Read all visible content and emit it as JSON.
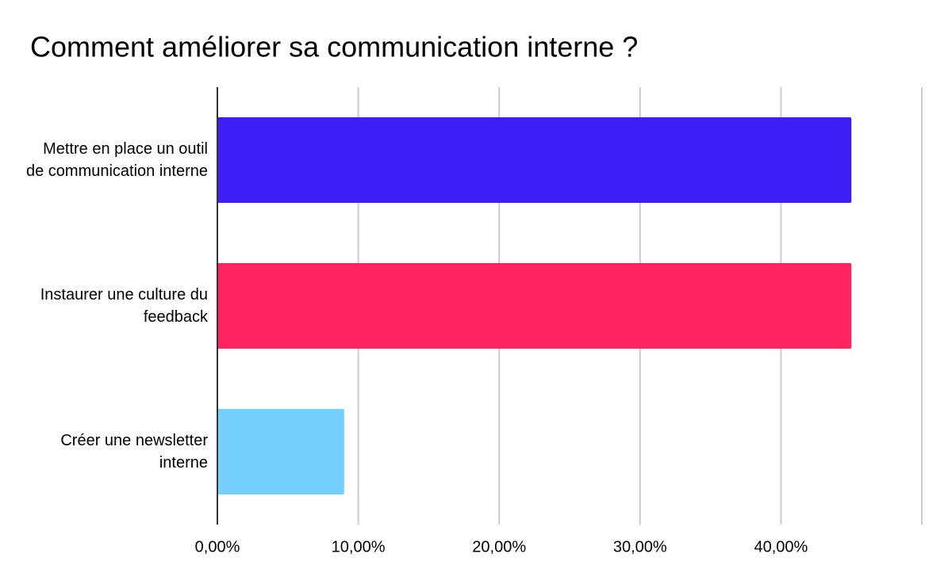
{
  "chart_data": {
    "type": "bar",
    "orientation": "horizontal",
    "title": "Comment améliorer sa communication interne ?",
    "categories": [
      "Mettre en place un outil de communication interne",
      "Instaurer une culture du feedback",
      "Créer une newsletter interne"
    ],
    "values": [
      45,
      45,
      9
    ],
    "colors": [
      "#3f1ff7",
      "#ff2360",
      "#76d0fd"
    ],
    "xlim": [
      0,
      50
    ],
    "xticks": [
      {
        "value": 0,
        "label": "0,00%"
      },
      {
        "value": 10,
        "label": "10,00%"
      },
      {
        "value": 20,
        "label": "20,00%"
      },
      {
        "value": 30,
        "label": "30,00%"
      },
      {
        "value": 40,
        "label": "40,00%"
      }
    ],
    "grid": true
  }
}
